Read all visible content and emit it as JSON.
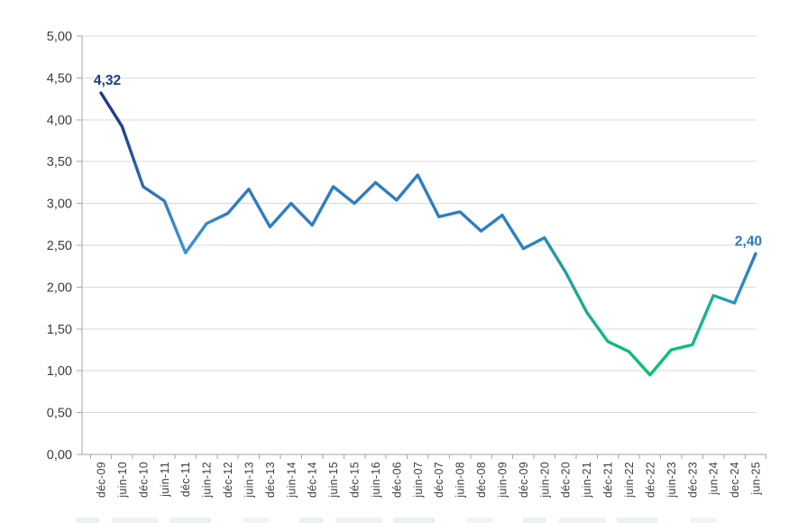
{
  "chart_data": {
    "type": "line",
    "title": "",
    "categories": [
      "déc-09",
      "juin-10",
      "déc-10",
      "juin-11",
      "déc-11",
      "juin-12",
      "déc-12",
      "juin-13",
      "déc-13",
      "juin-14",
      "déc-14",
      "juin-15",
      "déc-15",
      "juin-16",
      "déc-06",
      "juin-07",
      "déc-07",
      "juin-08",
      "déc-08",
      "juin-09",
      "déc-09",
      "juin-20",
      "déc-20",
      "juin-21",
      "déc-21",
      "juin-22",
      "déc-22",
      "juin-23",
      "déc-23",
      "jun-24",
      "dec-24",
      "jun-25"
    ],
    "series": [
      {
        "name": "",
        "values": [
          4.32,
          3.92,
          3.2,
          3.03,
          2.41,
          2.76,
          2.88,
          3.17,
          2.72,
          3.0,
          2.74,
          3.2,
          3.0,
          3.25,
          3.04,
          3.34,
          2.84,
          2.9,
          2.67,
          2.86,
          2.46,
          2.59,
          2.18,
          1.7,
          1.35,
          1.23,
          0.95,
          1.25,
          1.31,
          1.9,
          1.81,
          2.4
        ]
      }
    ],
    "xlabel": "",
    "ylabel": "",
    "ylim": [
      0,
      5
    ],
    "ytick_step": 0.5,
    "ytick_labels": [
      "0,00",
      "0,50",
      "1,00",
      "1,50",
      "2,00",
      "2,50",
      "3,00",
      "3,50",
      "4,00",
      "4,50",
      "5,00"
    ],
    "grid": true,
    "legend": false,
    "annotations": [
      {
        "category_index": 0,
        "label": "4,32",
        "color": "#1f3c8a"
      },
      {
        "category_index": 31,
        "label": "2,40",
        "color": "#2e78c8"
      }
    ],
    "line_width": 3.4,
    "line_gradient": [
      {
        "offset": 0.0,
        "color": "#1d3a86"
      },
      {
        "offset": 0.032,
        "color": "#21418f"
      },
      {
        "offset": 0.065,
        "color": "#2c6cb0"
      },
      {
        "offset": 0.129,
        "color": "#3e95d0"
      },
      {
        "offset": 0.194,
        "color": "#2e7dc2"
      },
      {
        "offset": 0.613,
        "color": "#2e7dc2"
      },
      {
        "offset": 0.677,
        "color": "#2b8ab8"
      },
      {
        "offset": 0.71,
        "color": "#21a29c"
      },
      {
        "offset": 0.774,
        "color": "#12b87f"
      },
      {
        "offset": 0.839,
        "color": "#0bc073"
      },
      {
        "offset": 0.903,
        "color": "#10bb82"
      },
      {
        "offset": 0.935,
        "color": "#1db09a"
      },
      {
        "offset": 0.968,
        "color": "#2b93c2"
      },
      {
        "offset": 1.0,
        "color": "#2e7bc9"
      }
    ],
    "grid_color": "#d9d9d9",
    "axis_color": "#a6a6a6",
    "tick_label_color": "#3d3d3d"
  }
}
